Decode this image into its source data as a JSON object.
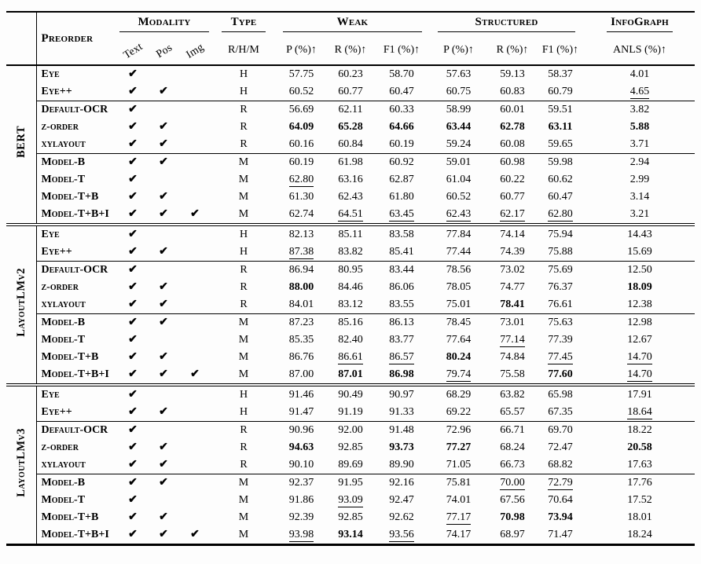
{
  "header": {
    "preorder": "Preorder",
    "modality": "Modality",
    "modality_cols": [
      "Text",
      "Pos",
      "Img"
    ],
    "type": "Type",
    "type_sub": "R/H/M",
    "weak": "Weak",
    "structured": "Structured",
    "infograph": "InfoGraph",
    "metric_cols": [
      "P (%)↑",
      "R (%)↑",
      "F1 (%)↑"
    ],
    "anls_col": "ANLS (%)↑"
  },
  "icons": {
    "check": "✔"
  },
  "colors": {
    "text": "#000000",
    "background": "#fdfdfd",
    "rule": "#000000"
  },
  "groups": [
    {
      "name": "BERT",
      "blocks": [
        {
          "rows": [
            {
              "label": "Eye",
              "modality": [
                1,
                0,
                0
              ],
              "type": "H",
              "values": [
                "57.75",
                "60.23",
                "58.70",
                "57.63",
                "59.13",
                "58.37",
                "4.01"
              ]
            },
            {
              "label": "Eye++",
              "modality": [
                1,
                1,
                0
              ],
              "type": "H",
              "values": [
                "60.52",
                "60.77",
                "60.47",
                "60.75",
                "60.83",
                "60.79",
                "4.65|u"
              ]
            }
          ]
        },
        {
          "rows": [
            {
              "label": "Default-OCR",
              "modality": [
                1,
                0,
                0
              ],
              "type": "R",
              "values": [
                "56.69",
                "62.11",
                "60.33",
                "58.99",
                "60.01",
                "59.51",
                "3.82"
              ]
            },
            {
              "label": "z-order",
              "modality": [
                1,
                1,
                0
              ],
              "type": "R",
              "values": [
                "64.09|b",
                "65.28|b",
                "64.66|b",
                "63.44|b",
                "62.78|b",
                "63.11|b",
                "5.88|b"
              ]
            },
            {
              "label": "xylayout",
              "modality": [
                1,
                1,
                0
              ],
              "type": "R",
              "values": [
                "60.16",
                "60.84",
                "60.19",
                "59.24",
                "60.08",
                "59.65",
                "3.71"
              ]
            }
          ]
        },
        {
          "rows": [
            {
              "label": "Model-B",
              "modality": [
                1,
                1,
                0
              ],
              "type": "M",
              "values": [
                "60.19",
                "61.98",
                "60.92",
                "59.01",
                "60.98",
                "59.98",
                "2.94"
              ]
            },
            {
              "label": "Model-T",
              "modality": [
                1,
                0,
                0
              ],
              "type": "M",
              "values": [
                "62.80|u",
                "63.16",
                "62.87",
                "61.04",
                "60.22",
                "60.62",
                "2.99"
              ]
            },
            {
              "label": "Model-T+B",
              "modality": [
                1,
                1,
                0
              ],
              "type": "M",
              "values": [
                "61.30",
                "62.43",
                "61.80",
                "60.52",
                "60.77",
                "60.47",
                "3.14"
              ]
            },
            {
              "label": "Model-T+B+I",
              "modality": [
                1,
                1,
                1
              ],
              "type": "M",
              "values": [
                "62.74",
                "64.51|u",
                "63.45|u",
                "62.43|u",
                "62.17|u",
                "62.80|u",
                "3.21"
              ]
            }
          ]
        }
      ]
    },
    {
      "name": "LayoutLMv2",
      "blocks": [
        {
          "rows": [
            {
              "label": "Eye",
              "modality": [
                1,
                0,
                0
              ],
              "type": "H",
              "values": [
                "82.13",
                "85.11",
                "83.58",
                "77.84",
                "74.14",
                "75.94",
                "14.43"
              ]
            },
            {
              "label": "Eye++",
              "modality": [
                1,
                1,
                0
              ],
              "type": "H",
              "values": [
                "87.38|u",
                "83.82",
                "85.41",
                "77.44",
                "74.39",
                "75.88",
                "15.69"
              ]
            }
          ]
        },
        {
          "rows": [
            {
              "label": "Default-OCR",
              "modality": [
                1,
                0,
                0
              ],
              "type": "R",
              "values": [
                "86.94",
                "80.95",
                "83.44",
                "78.56",
                "73.02",
                "75.69",
                "12.50"
              ]
            },
            {
              "label": "z-order",
              "modality": [
                1,
                1,
                0
              ],
              "type": "R",
              "values": [
                "88.00|b",
                "84.46",
                "86.06",
                "78.05",
                "74.77",
                "76.37",
                "18.09|b"
              ]
            },
            {
              "label": "xylayout",
              "modality": [
                1,
                1,
                0
              ],
              "type": "R",
              "values": [
                "84.01",
                "83.12",
                "83.55",
                "75.01",
                "78.41|b",
                "76.61",
                "12.38"
              ]
            }
          ]
        },
        {
          "rows": [
            {
              "label": "Model-B",
              "modality": [
                1,
                1,
                0
              ],
              "type": "M",
              "values": [
                "87.23",
                "85.16",
                "86.13",
                "78.45",
                "73.01",
                "75.63",
                "12.98"
              ]
            },
            {
              "label": "Model-T",
              "modality": [
                1,
                0,
                0
              ],
              "type": "M",
              "values": [
                "85.35",
                "82.40",
                "83.77",
                "77.64",
                "77.14|u",
                "77.39",
                "12.67"
              ]
            },
            {
              "label": "Model-T+B",
              "modality": [
                1,
                1,
                0
              ],
              "type": "M",
              "values": [
                "86.76",
                "86.61|u",
                "86.57|u",
                "80.24|b",
                "74.84",
                "77.45|u",
                "14.70|u"
              ]
            },
            {
              "label": "Model-T+B+I",
              "modality": [
                1,
                1,
                1
              ],
              "type": "M",
              "values": [
                "87.00",
                "87.01|b",
                "86.98|b",
                "79.74|u",
                "75.58",
                "77.60|b",
                "14.70|u"
              ]
            }
          ]
        }
      ]
    },
    {
      "name": "LayoutLMv3",
      "blocks": [
        {
          "rows": [
            {
              "label": "Eye",
              "modality": [
                1,
                0,
                0
              ],
              "type": "H",
              "values": [
                "91.46",
                "90.49",
                "90.97",
                "68.29",
                "63.82",
                "65.98",
                "17.91"
              ]
            },
            {
              "label": "Eye++",
              "modality": [
                1,
                1,
                0
              ],
              "type": "H",
              "values": [
                "91.47",
                "91.19",
                "91.33",
                "69.22",
                "65.57",
                "67.35",
                "18.64|u"
              ]
            }
          ]
        },
        {
          "rows": [
            {
              "label": "Default-OCR",
              "modality": [
                1,
                0,
                0
              ],
              "type": "R",
              "values": [
                "90.96",
                "92.00",
                "91.48",
                "72.96",
                "66.71",
                "69.70",
                "18.22"
              ]
            },
            {
              "label": "z-order",
              "modality": [
                1,
                1,
                0
              ],
              "type": "R",
              "values": [
                "94.63|b",
                "92.85",
                "93.73|b",
                "77.27|b",
                "68.24",
                "72.47",
                "20.58|b"
              ]
            },
            {
              "label": "xylayout",
              "modality": [
                1,
                1,
                0
              ],
              "type": "R",
              "values": [
                "90.10",
                "89.69",
                "89.90",
                "71.05",
                "66.73",
                "68.82",
                "17.63"
              ]
            }
          ]
        },
        {
          "rows": [
            {
              "label": "Model-B",
              "modality": [
                1,
                1,
                0
              ],
              "type": "M",
              "values": [
                "92.37",
                "91.95",
                "92.16",
                "75.81",
                "70.00|u",
                "72.79|u",
                "17.76"
              ]
            },
            {
              "label": "Model-T",
              "modality": [
                1,
                0,
                0
              ],
              "type": "M",
              "values": [
                "91.86",
                "93.09|u",
                "92.47",
                "74.01",
                "67.56",
                "70.64",
                "17.52"
              ]
            },
            {
              "label": "Model-T+B",
              "modality": [
                1,
                1,
                0
              ],
              "type": "M",
              "values": [
                "92.39",
                "92.85",
                "92.62",
                "77.17|u",
                "70.98|b",
                "73.94|b",
                "18.01"
              ]
            },
            {
              "label": "Model-T+B+I",
              "modality": [
                1,
                1,
                1
              ],
              "type": "M",
              "values": [
                "93.98|u",
                "93.14|b",
                "93.56|u",
                "74.17",
                "68.97",
                "71.47",
                "18.24"
              ]
            }
          ]
        }
      ]
    }
  ]
}
